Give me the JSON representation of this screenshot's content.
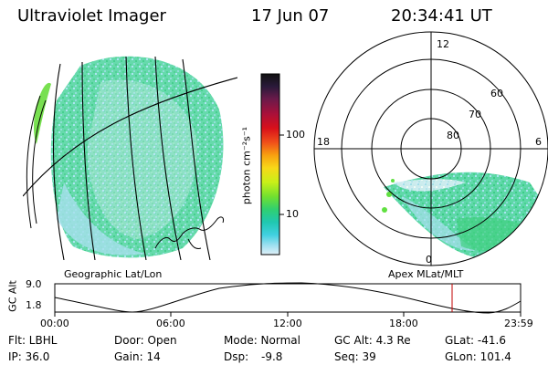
{
  "header": {
    "instrument": "Ultraviolet Imager",
    "date": "17 Jun 07",
    "time": "20:34:41 UT"
  },
  "colorbar": {
    "unit_label": "photon cm⁻²s⁻¹",
    "ticks": [
      "100",
      "10"
    ],
    "colors": [
      "#111111",
      "#2a1a3a",
      "#6b1a4a",
      "#a8103a",
      "#d8101a",
      "#f0501a",
      "#f8a010",
      "#f8d818",
      "#c8f018",
      "#70e030",
      "#30d070",
      "#20c8b0",
      "#40d0e0",
      "#a0e0f0",
      "#e0f0f8"
    ]
  },
  "left_panel": {
    "caption": "Geographic Lat/Lon"
  },
  "right_panel": {
    "caption": "Apex  MLat/MLT",
    "mlt_labels": {
      "top": "12",
      "left": "18",
      "right": "6",
      "bottom": "0"
    },
    "lat_labels": [
      "60",
      "70",
      "80"
    ]
  },
  "altitude_plot": {
    "ylabel": "GC Alt",
    "y_ticks": [
      "9.0",
      "1.8"
    ],
    "x_ticks": [
      "00:00",
      "06:00",
      "12:00",
      "18:00",
      "23:59"
    ],
    "current_time_marker_color": "#c00000"
  },
  "status": {
    "flt": "Flt: LBHL",
    "ip": "IP: 36.0",
    "door": "Door: Open",
    "gain": "Gain: 14",
    "mode": "Mode: Normal",
    "dsp_label": "Dsp:",
    "dsp_value": "-9.8",
    "gc_alt": "GC Alt: 4.3 Re",
    "seq": "Seq: 39",
    "glat": "GLat: -41.6",
    "glon": "GLon: 101.4"
  }
}
